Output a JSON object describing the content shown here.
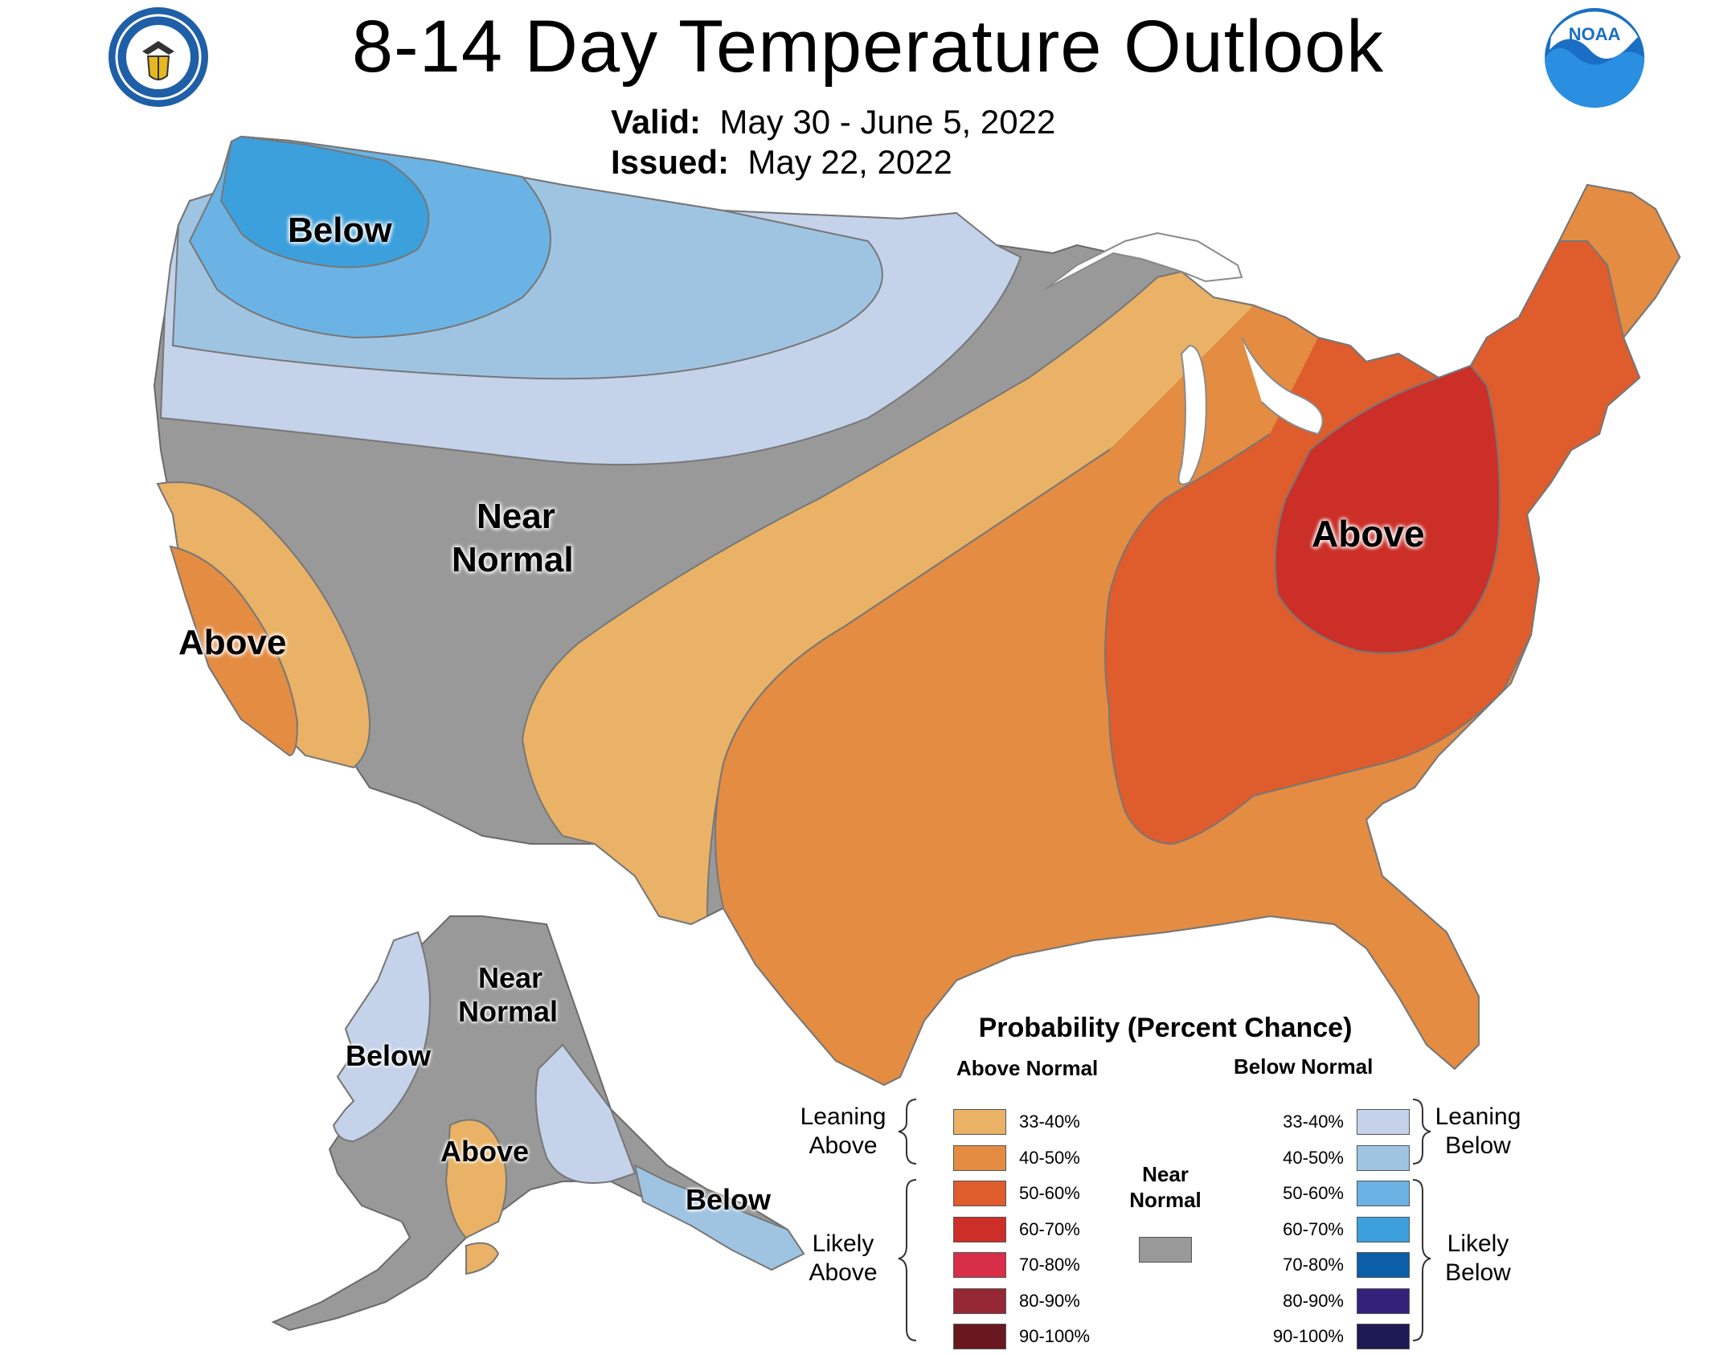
{
  "header": {
    "title": "8-14 Day Temperature Outlook",
    "valid_label": "Valid:",
    "valid_value": "May 30 - June 5, 2022",
    "issued_label": "Issued:",
    "issued_value": "May 22, 2022",
    "left_logo_icon": "commerce-seal-icon",
    "right_logo_icon": "noaa-logo-icon",
    "right_logo_text": "NOAA"
  },
  "map_labels": {
    "northwest": "Below",
    "west_near_1": "Near",
    "west_near_2": "Normal",
    "california": "Above",
    "east": "Above",
    "ak_near_1": "Near",
    "ak_near_2": "Normal",
    "ak_west": "Below",
    "ak_south": "Above",
    "ak_southeast": "Below"
  },
  "legend": {
    "title": "Probability (Percent Chance)",
    "above_header": "Above Normal",
    "below_header": "Below Normal",
    "leaning_above_1": "Leaning",
    "leaning_above_2": "Above",
    "likely_above_1": "Likely",
    "likely_above_2": "Above",
    "leaning_below_1": "Leaning",
    "leaning_below_2": "Below",
    "likely_below_1": "Likely",
    "likely_below_2": "Below",
    "near_normal_1": "Near",
    "near_normal_2": "Normal",
    "above": [
      {
        "range": "33-40%",
        "color": "#e9b266"
      },
      {
        "range": "40-50%",
        "color": "#e38c42"
      },
      {
        "range": "50-60%",
        "color": "#df5c2c"
      },
      {
        "range": "60-70%",
        "color": "#cc2e28"
      },
      {
        "range": "70-80%",
        "color": "#d92e48"
      },
      {
        "range": "80-90%",
        "color": "#962835"
      },
      {
        "range": "90-100%",
        "color": "#6a1820"
      }
    ],
    "below": [
      {
        "range": "33-40%",
        "color": "#c4d2ea"
      },
      {
        "range": "40-50%",
        "color": "#9fc4e2"
      },
      {
        "range": "50-60%",
        "color": "#6bb3e4"
      },
      {
        "range": "60-70%",
        "color": "#3ca0dc"
      },
      {
        "range": "70-80%",
        "color": "#0a5fa8"
      },
      {
        "range": "80-90%",
        "color": "#34227a"
      },
      {
        "range": "90-100%",
        "color": "#1d1a55"
      }
    ],
    "near_normal_color": "#999999"
  }
}
